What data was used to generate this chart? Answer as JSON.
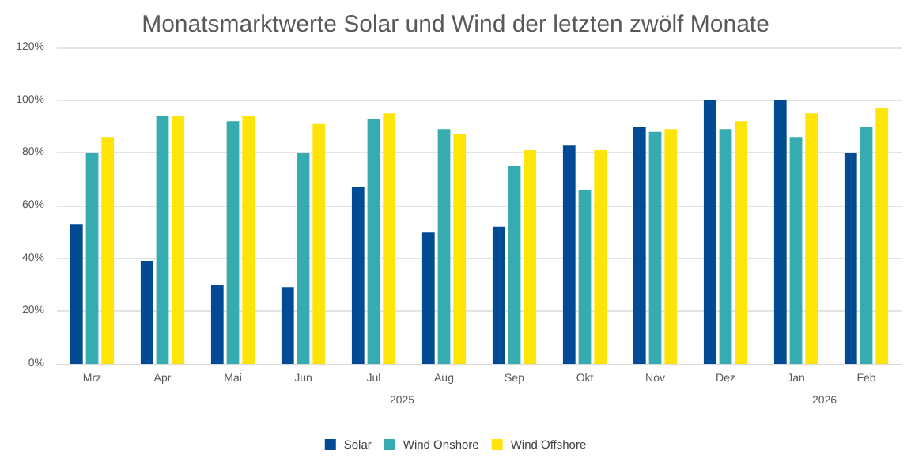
{
  "chart_data": {
    "type": "bar",
    "title": "Monatsmarktwerte Solar und Wind der letzten zwölf Monate",
    "categories": [
      "Mrz",
      "Apr",
      "Mai",
      "Jun",
      "Jul",
      "Aug",
      "Sep",
      "Okt",
      "Nov",
      "Dez",
      "Jan",
      "Feb"
    ],
    "series": [
      {
        "name": "Solar",
        "color": "#004b93",
        "values": [
          53,
          39,
          30,
          29,
          67,
          50,
          52,
          83,
          90,
          100,
          100,
          80
        ]
      },
      {
        "name": "Wind Onshore",
        "color": "#36abb0",
        "values": [
          80,
          94,
          92,
          80,
          93,
          89,
          75,
          66,
          88,
          89,
          86,
          90
        ]
      },
      {
        "name": "Wind Offshore",
        "color": "#ffe40a",
        "values": [
          86,
          94,
          94,
          91,
          95,
          87,
          81,
          81,
          89,
          92,
          95,
          97
        ]
      }
    ],
    "annotations": [
      "2025",
      "2026"
    ],
    "ylim": [
      0,
      120
    ],
    "yticks": [
      {
        "value": 0,
        "label": "0%"
      },
      {
        "value": 20,
        "label": "20%"
      },
      {
        "value": 40,
        "label": "40%"
      },
      {
        "value": 60,
        "label": "60%"
      },
      {
        "value": 80,
        "label": "80%"
      },
      {
        "value": 100,
        "label": "100%"
      },
      {
        "value": 120,
        "label": "120%"
      }
    ],
    "grid": "y",
    "legend": "bottom"
  }
}
